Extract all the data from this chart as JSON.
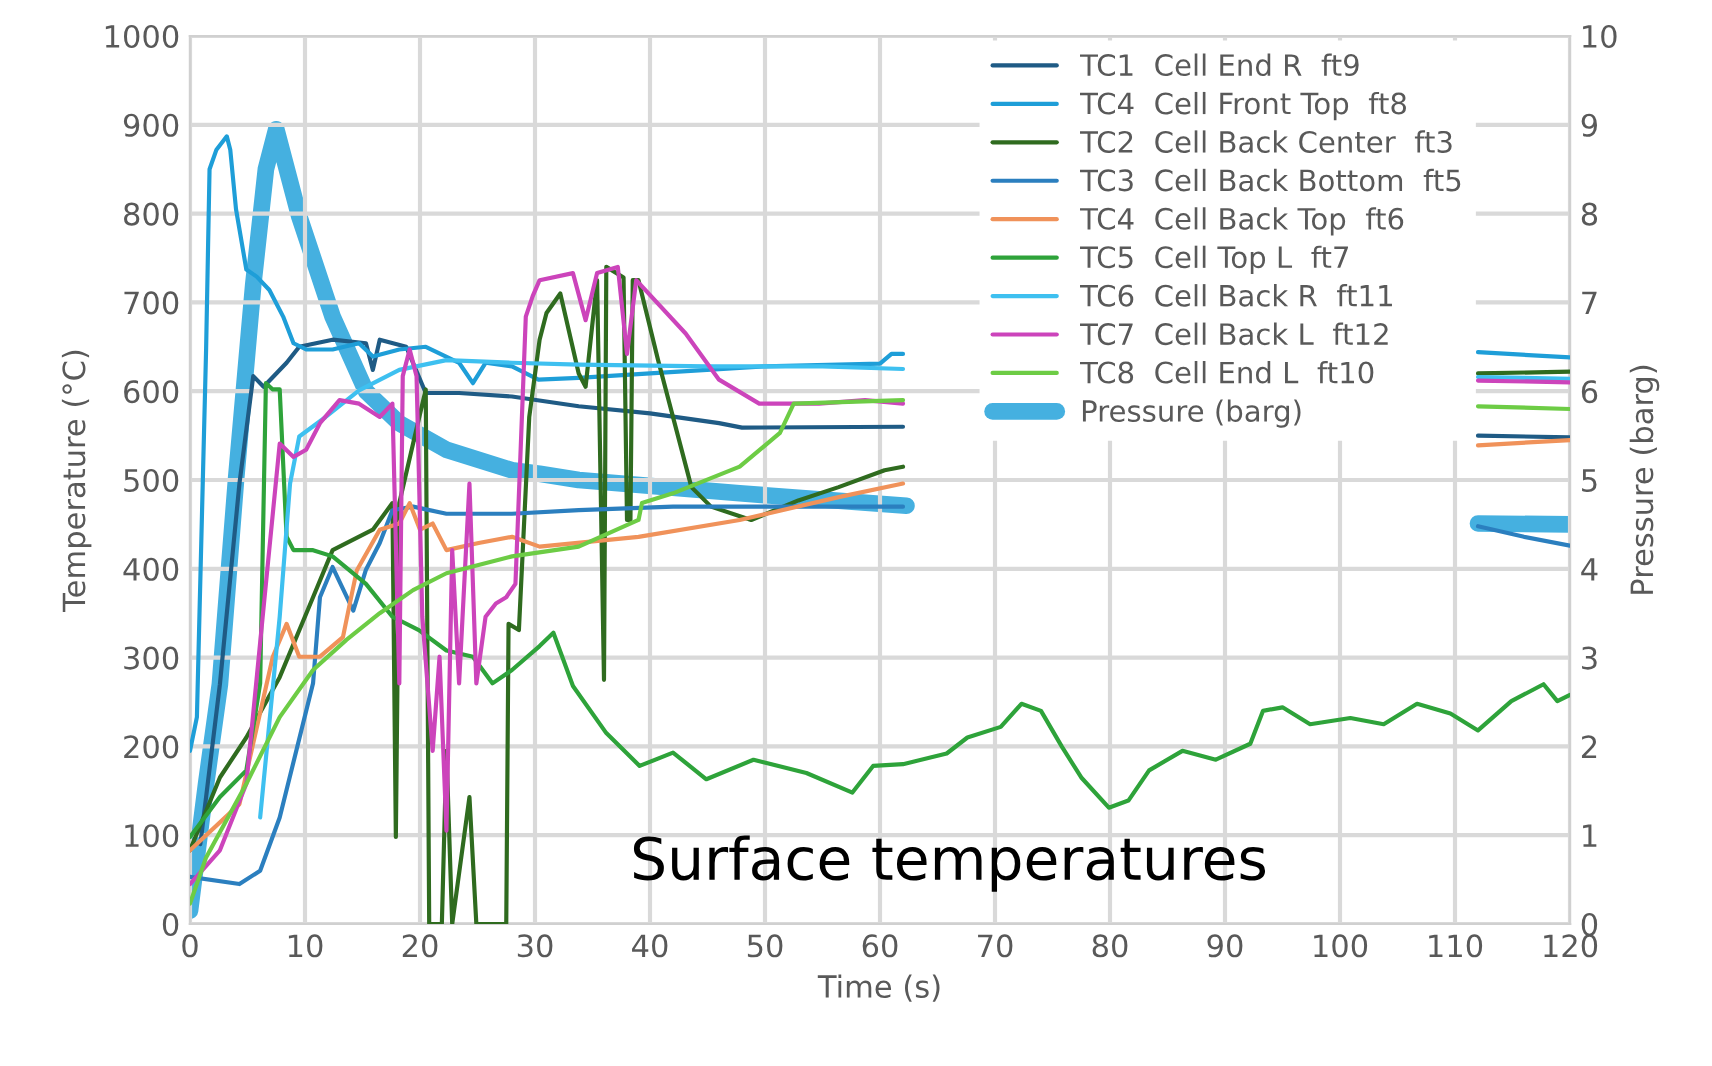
{
  "chart_data": {
    "type": "line",
    "xlabel": "Time (s)",
    "ylabel": "Temperature (°C)",
    "y2label": "Pressure (barg)",
    "xlim": [
      0,
      120
    ],
    "xticks": [
      0,
      10,
      20,
      30,
      40,
      50,
      60,
      70,
      80,
      90,
      100,
      110,
      120
    ],
    "ylim": [
      0,
      1000
    ],
    "yticks": [
      0,
      100,
      200,
      300,
      400,
      500,
      600,
      700,
      800,
      900,
      1000
    ],
    "y2lim": [
      0,
      10
    ],
    "y2ticks": [
      0,
      1,
      2,
      3,
      4,
      5,
      6,
      7,
      8,
      9,
      10
    ],
    "grid": true,
    "legend": "top right",
    "line_style": "solid",
    "marker": "none",
    "annotations": [
      "Surface temperatures"
    ],
    "series": [
      {
        "name": "TC1  Cell End R  ft9",
        "color": "#1f5b85",
        "x": [
          0.9,
          2.6,
          4.3,
          5.5,
          6.4,
          8.4,
          9.5,
          12.4,
          15.3,
          15.9,
          16.5,
          18.8,
          20.5,
          23.4,
          28,
          33.8,
          40,
          46,
          48,
          62,
          87,
          112,
          120
        ],
        "values": [
          90,
          270,
          496,
          617,
          605,
          632,
          650,
          658,
          654,
          624,
          658,
          650,
          598,
          598,
          594,
          583,
          575,
          564,
          559,
          560,
          null,
          550,
          548
        ]
      },
      {
        "name": "TC4  Cell Front Top  ft8",
        "color": "#1e9ed8",
        "x": [
          0,
          0.6,
          1.4,
          1.7,
          2.3,
          3.2,
          3.5,
          4.0,
          4.9,
          5.8,
          6.9,
          8.1,
          9.0,
          10.1,
          12.4,
          14.7,
          15.9,
          18.2,
          20.5,
          23.4,
          24.6,
          25.7,
          28,
          30.3,
          33.8,
          40,
          50,
          60,
          61,
          62,
          87,
          112,
          120
        ],
        "values": [
          195,
          233,
          647,
          850,
          872,
          887,
          872,
          805,
          737,
          729,
          714,
          684,
          654,
          647,
          647,
          654,
          639,
          647,
          650,
          632,
          609,
          632,
          628,
          613,
          615,
          620,
          628,
          631,
          642,
          642,
          null,
          644,
          638
        ]
      },
      {
        "name": "TC2  Cell Back Center  ft3",
        "color": "#2f6b1f",
        "x": [
          0,
          2.6,
          4.9,
          7.8,
          10.7,
          12.4,
          15.9,
          17.6,
          17.9,
          18.2,
          19.4,
          20.5,
          20.8,
          21.9,
          22.3,
          22.8,
          24.3,
          24.9,
          27.5,
          27.7,
          28.6,
          29.5,
          30.4,
          31,
          32.2,
          33.8,
          34.4,
          35.4,
          36,
          36.2,
          37.7,
          38,
          38.3,
          38.5,
          39,
          40.7,
          43.6,
          45.3,
          48.8,
          52.9,
          56.4,
          60.4,
          62,
          87,
          112,
          120
        ],
        "values": [
          83,
          165,
          210,
          278,
          368,
          421,
          444,
          474,
          98,
          474,
          541,
          602,
          0,
          0,
          195,
          0,
          143,
          0,
          0,
          338,
          331,
          571,
          658,
          688,
          710,
          620,
          605,
          725,
          275,
          740,
          728,
          455,
          455,
          725,
          725,
          635,
          492,
          470,
          455,
          477,
          492,
          511,
          515,
          null,
          620,
          622
        ]
      },
      {
        "name": "TC3  Cell Back Bottom  ft5",
        "color": "#2b7fbf",
        "x": [
          0,
          4.3,
          6.1,
          7.8,
          10.7,
          11.3,
          12.4,
          14.2,
          15.3,
          16.5,
          17.6,
          19.4,
          22.3,
          28,
          33.8,
          42,
          62,
          87,
          112,
          116,
          120
        ],
        "values": [
          53,
          45,
          60,
          120,
          271,
          368,
          402,
          353,
          399,
          429,
          466,
          470,
          462,
          462,
          466,
          470,
          470,
          null,
          448,
          436,
          426
        ]
      },
      {
        "name": "TC4  Cell Back Top  ft6",
        "color": "#f0925a",
        "x": [
          0,
          4.3,
          7.2,
          8.4,
          9.5,
          11.3,
          13.3,
          13.9,
          14.5,
          16.5,
          18.2,
          19.1,
          20,
          21.1,
          22.3,
          25.1,
          28,
          30.4,
          39,
          47.8,
          56.5,
          62,
          87,
          112,
          120
        ],
        "values": [
          83,
          135,
          301,
          338,
          301,
          301,
          323,
          361,
          398,
          444,
          451,
          474,
          444,
          451,
          421,
          429,
          436,
          425,
          436,
          455,
          481,
          496,
          null,
          539,
          545
        ]
      },
      {
        "name": "TC5  Cell Top L  ft7",
        "color": "#2ea33a",
        "x": [
          0,
          2.6,
          4.9,
          6.1,
          6.6,
          7.2,
          7.8,
          8.4,
          9,
          10.7,
          12.4,
          15.3,
          17.6,
          19.9,
          22.3,
          24.6,
          26.3,
          28,
          30.4,
          31.6,
          33.3,
          36.2,
          39.1,
          42,
          44.9,
          49,
          53.6,
          57.6,
          59.4,
          62,
          65.8,
          67.6,
          70.5,
          72.3,
          74,
          75.8,
          77.5,
          79.9,
          81.6,
          83.4,
          86.3,
          89.2,
          92.2,
          93.3,
          95,
          97.4,
          100.9,
          103.8,
          106.7,
          109.6,
          112,
          114.9,
          117.7,
          118.9,
          120
        ],
        "values": [
          98,
          143,
          173,
          271,
          609,
          602,
          602,
          436,
          421,
          421,
          414,
          383,
          346,
          331,
          308,
          301,
          271,
          286,
          313,
          328,
          268,
          215,
          178,
          193,
          163,
          185,
          170,
          148,
          178,
          180,
          192,
          210,
          222,
          248,
          240,
          200,
          165,
          131,
          139,
          173,
          195,
          185,
          203,
          240,
          244,
          225,
          232,
          225,
          248,
          237,
          218,
          251,
          270,
          251,
          258
        ]
      },
      {
        "name": "TC6  Cell Back R  ft11",
        "color": "#3ec0f0",
        "x": [
          6.1,
          7.8,
          8.7,
          9.5,
          11.8,
          14.7,
          18.2,
          22.3,
          28,
          33.8,
          45,
          55,
          62,
          87,
          112,
          120
        ],
        "values": [
          120,
          346,
          496,
          549,
          571,
          601,
          624,
          635,
          632,
          630,
          628,
          628,
          625,
          null,
          616,
          614
        ]
      },
      {
        "name": "TC7  Cell Back L  ft12",
        "color": "#cc44bb",
        "x": [
          0,
          2.6,
          4.9,
          6.6,
          7.8,
          9,
          10.1,
          11.3,
          13,
          14.7,
          16.5,
          17.6,
          18.2,
          18.5,
          19.1,
          19.7,
          20.2,
          21.1,
          21.7,
          22.3,
          22.8,
          23.4,
          24.3,
          24.9,
          25.7,
          26.6,
          27.5,
          28.3,
          29.2,
          29.8,
          30.4,
          33.3,
          34.4,
          35.4,
          37.2,
          38,
          38.8,
          43.1,
          46,
          49.5,
          54.7,
          58.7,
          62,
          87,
          112,
          120
        ],
        "values": [
          45,
          83,
          158,
          383,
          541,
          526,
          534,
          564,
          590,
          586,
          571,
          586,
          271,
          617,
          647,
          617,
          346,
          195,
          301,
          105,
          421,
          271,
          496,
          271,
          346,
          361,
          368,
          383,
          684,
          707,
          725,
          733,
          680,
          733,
          740,
          642,
          725,
          665,
          613,
          586,
          586,
          590,
          586,
          null,
          612,
          610
        ]
      },
      {
        "name": "TC8  Cell End L  ft10",
        "color": "#6dcc45",
        "x": [
          0,
          1.4,
          4.9,
          7.8,
          10.7,
          13.6,
          16.5,
          19.4,
          22.3,
          28,
          33.8,
          39,
          39.3,
          42,
          47.8,
          51.3,
          52.5,
          62,
          87,
          112,
          120
        ],
        "values": [
          23,
          75,
          158,
          233,
          286,
          320,
          350,
          376,
          395,
          414,
          425,
          455,
          474,
          485,
          515,
          553,
          586,
          590,
          null,
          583,
          580
        ]
      },
      {
        "name": "Pressure (barg)",
        "color": "#45b0e0",
        "axis": "y2",
        "x": [
          0,
          1.4,
          2.6,
          4,
          5.5,
          6.6,
          7.5,
          9.5,
          12.4,
          15.3,
          18.2,
          22.3,
          28,
          30.4,
          33.8,
          47.8,
          62.3,
          87,
          112,
          120
        ],
        "values": [
          0.15,
          1.58,
          2.7,
          5.0,
          7.2,
          8.5,
          8.95,
          7.97,
          6.84,
          6.0,
          5.64,
          5.34,
          5.11,
          5.07,
          5.0,
          4.85,
          4.71,
          null,
          4.51,
          4.5
        ]
      }
    ]
  }
}
